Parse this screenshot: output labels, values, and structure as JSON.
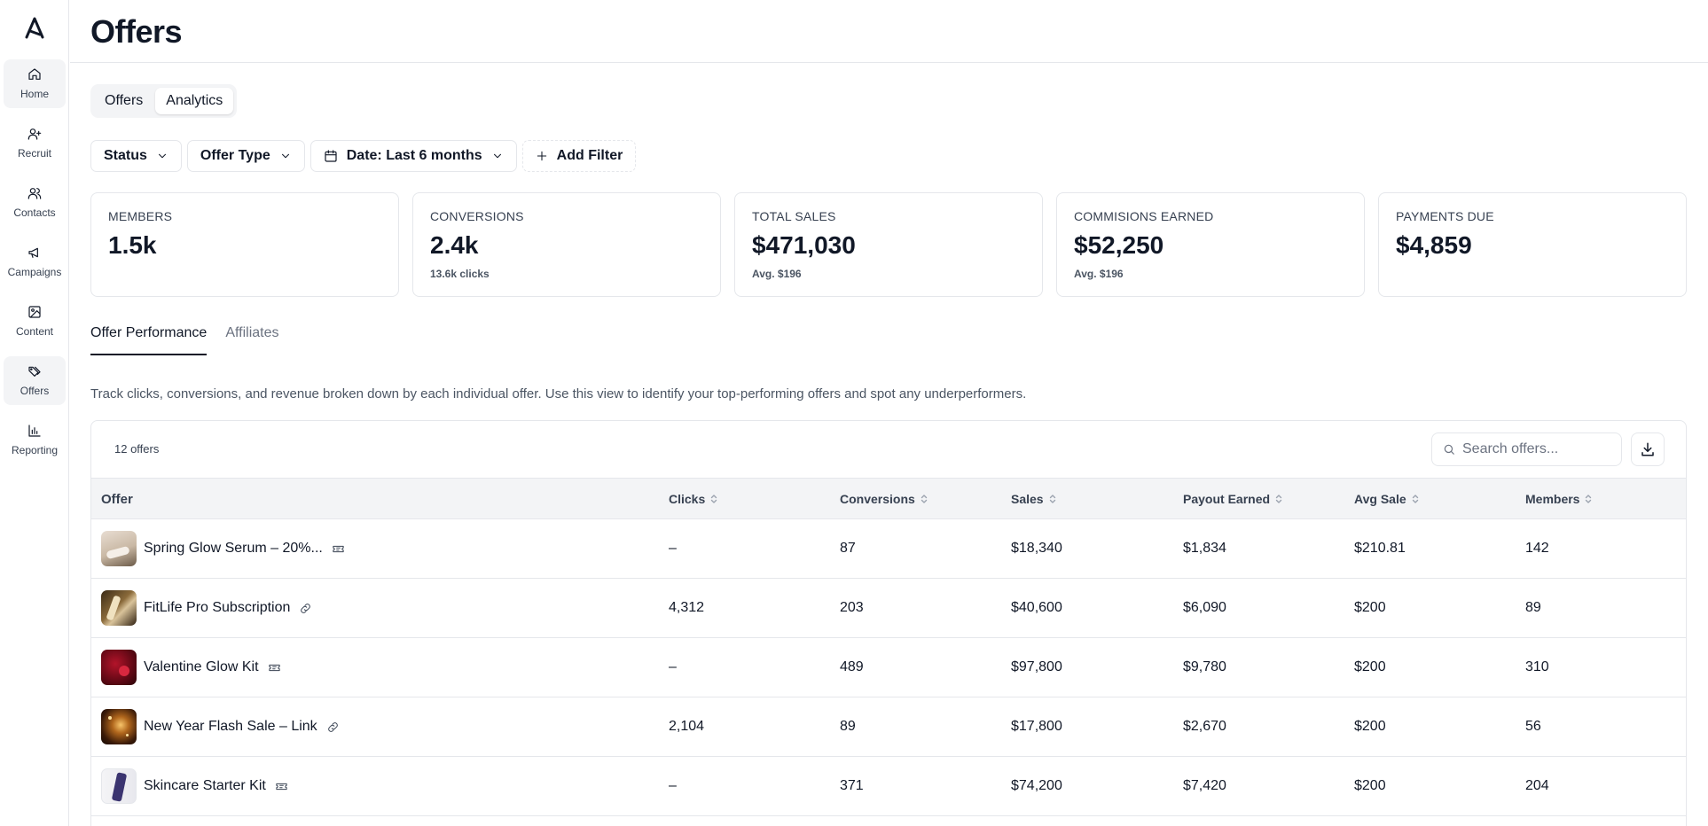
{
  "sidebar": {
    "items": [
      {
        "label": "Home",
        "icon": "home-icon",
        "active": true
      },
      {
        "label": "Recruit",
        "icon": "user-plus-icon",
        "active": false
      },
      {
        "label": "Contacts",
        "icon": "users-icon",
        "active": false
      },
      {
        "label": "Campaigns",
        "icon": "megaphone-icon",
        "active": false
      },
      {
        "label": "Content",
        "icon": "image-icon",
        "active": false
      },
      {
        "label": "Offers",
        "icon": "tags-icon",
        "active": true
      },
      {
        "label": "Reporting",
        "icon": "bar-chart-icon",
        "active": false
      }
    ]
  },
  "header": {
    "title": "Offers"
  },
  "view_toggle": {
    "offers": "Offers",
    "analytics": "Analytics",
    "selected": "Analytics"
  },
  "filters": {
    "status": "Status",
    "offer_type": "Offer Type",
    "date": "Date: Last 6 months",
    "add": "Add Filter"
  },
  "stats": [
    {
      "label": "MEMBERS",
      "value": "1.5k",
      "sub": ""
    },
    {
      "label": "CONVERSIONS",
      "value": "2.4k",
      "sub": "13.6k clicks"
    },
    {
      "label": "TOTAL SALES",
      "value": "$471,030",
      "sub": "Avg. $196"
    },
    {
      "label": "COMMISIONS EARNED",
      "value": "$52,250",
      "sub": "Avg. $196"
    },
    {
      "label": "PAYMENTS DUE",
      "value": "$4,859",
      "sub": ""
    }
  ],
  "tabs": {
    "performance": "Offer Performance",
    "affiliates": "Affiliates",
    "selected": "Offer Performance"
  },
  "description": "Track clicks, conversions, and revenue broken down by each individual offer. Use this view to identify your top-performing offers and spot any underperformers.",
  "table": {
    "count": "12 offers",
    "search_placeholder": "Search offers...",
    "columns": [
      "Offer",
      "Clicks",
      "Conversions",
      "Sales",
      "Payout Earned",
      "Avg Sale",
      "Members"
    ],
    "rows": [
      {
        "name": "Spring Glow Serum – 20%...",
        "type_icon": "ticket-icon",
        "clicks": "–",
        "conversions": "87",
        "sales": "$18,340",
        "payout": "$1,834",
        "avg_sale": "$210.81",
        "members": "142"
      },
      {
        "name": "FitLife Pro Subscription",
        "type_icon": "link-icon",
        "clicks": "4,312",
        "conversions": "203",
        "sales": "$40,600",
        "payout": "$6,090",
        "avg_sale": "$200",
        "members": "89"
      },
      {
        "name": "Valentine Glow Kit",
        "type_icon": "ticket-icon",
        "clicks": "–",
        "conversions": "489",
        "sales": "$97,800",
        "payout": "$9,780",
        "avg_sale": "$200",
        "members": "310"
      },
      {
        "name": "New Year Flash Sale – Link",
        "type_icon": "link-icon",
        "clicks": "2,104",
        "conversions": "89",
        "sales": "$17,800",
        "payout": "$2,670",
        "avg_sale": "$200",
        "members": "56"
      },
      {
        "name": "Skincare Starter Kit",
        "type_icon": "ticket-icon",
        "clicks": "–",
        "conversions": "371",
        "sales": "$74,200",
        "payout": "$7,420",
        "avg_sale": "$200",
        "members": "204"
      }
    ]
  }
}
